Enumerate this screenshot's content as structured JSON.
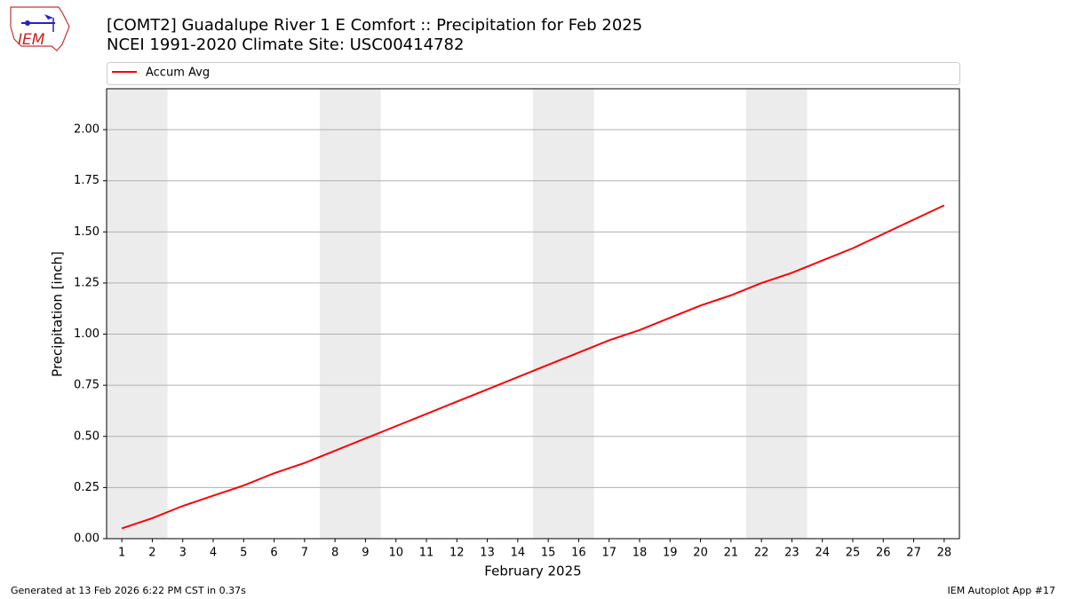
{
  "logo_text": "IEM",
  "footer_left": "Generated at 13 Feb 2026 6:22 PM CST in 0.37s",
  "footer_right": "IEM Autoplot App #17",
  "chart_data": {
    "type": "line",
    "title": "[COMT2] Guadalupe River 1 E Comfort :: Precipitation for Feb 2025",
    "subtitle": "NCEI 1991-2020 Climate Site: USC00414782",
    "x_label": "February 2025",
    "y_label": "Precipitation [inch]",
    "x": [
      1,
      2,
      3,
      4,
      5,
      6,
      7,
      8,
      9,
      10,
      11,
      12,
      13,
      14,
      15,
      16,
      17,
      18,
      19,
      20,
      21,
      22,
      23,
      24,
      25,
      26,
      27,
      28
    ],
    "series": [
      {
        "name": "Accum Avg",
        "color": "#ff0000",
        "values": [
          0.05,
          0.1,
          0.16,
          0.21,
          0.26,
          0.32,
          0.37,
          0.43,
          0.49,
          0.55,
          0.61,
          0.67,
          0.73,
          0.79,
          0.85,
          0.91,
          0.97,
          1.02,
          1.08,
          1.14,
          1.19,
          1.25,
          1.3,
          1.36,
          1.42,
          1.49,
          1.56,
          1.63
        ]
      }
    ],
    "shaded_ranges": [
      [
        0.5,
        2.5
      ],
      [
        7.5,
        9.5
      ],
      [
        14.5,
        16.5
      ],
      [
        21.5,
        23.5
      ]
    ],
    "shade_color": "#ececec",
    "xlim": [
      0.5,
      28.5
    ],
    "xticks": [
      1,
      2,
      3,
      4,
      5,
      6,
      7,
      8,
      9,
      10,
      11,
      12,
      13,
      14,
      15,
      16,
      17,
      18,
      19,
      20,
      21,
      22,
      23,
      24,
      25,
      26,
      27,
      28
    ],
    "ylim": [
      0,
      2.2
    ],
    "yticks": [
      {
        "value": 0,
        "label": "0.00"
      },
      {
        "value": 0.25,
        "label": "0.25"
      },
      {
        "value": 0.5,
        "label": "0.50"
      },
      {
        "value": 0.75,
        "label": "0.75"
      },
      {
        "value": 1,
        "label": "1.00"
      },
      {
        "value": 1.25,
        "label": "1.25"
      },
      {
        "value": 1.5,
        "label": "1.50"
      },
      {
        "value": 1.75,
        "label": "1.75"
      },
      {
        "value": 2,
        "label": "2.00"
      }
    ],
    "grid": true,
    "legend": "top"
  }
}
